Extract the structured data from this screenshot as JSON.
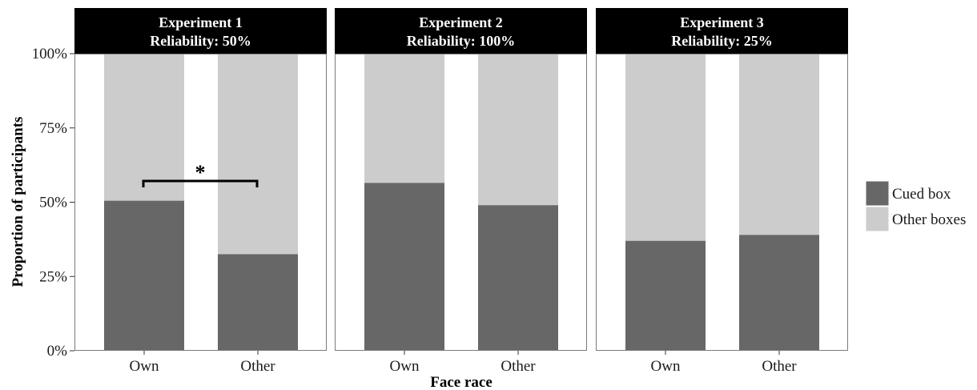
{
  "chart_data": {
    "type": "bar",
    "stacked": true,
    "xlabel": "Face race",
    "ylabel": "Proportion of participants",
    "ylim": [
      0,
      1
    ],
    "yticks": [
      "0%",
      "25%",
      "50%",
      "75%",
      "100%"
    ],
    "yticks_values": [
      0,
      0.25,
      0.5,
      0.75,
      1.0
    ],
    "categories": [
      "Own",
      "Other"
    ],
    "legend_position": "right",
    "colors": {
      "cued": "#676767",
      "other": "#cccccc",
      "header": "#000000"
    },
    "series_names": {
      "cued": "Cued box",
      "other": "Other boxes"
    },
    "panels": [
      {
        "title_line1": "Experiment 1",
        "title_line2": "Reliability: 50%",
        "cued": [
          0.505,
          0.325
        ],
        "significance": "*"
      },
      {
        "title_line1": "Experiment 2",
        "title_line2": "Reliability: 100%",
        "cued": [
          0.565,
          0.49
        ],
        "significance": ""
      },
      {
        "title_line1": "Experiment 3",
        "title_line2": "Reliability: 25%",
        "cued": [
          0.37,
          0.39
        ],
        "significance": ""
      }
    ]
  }
}
